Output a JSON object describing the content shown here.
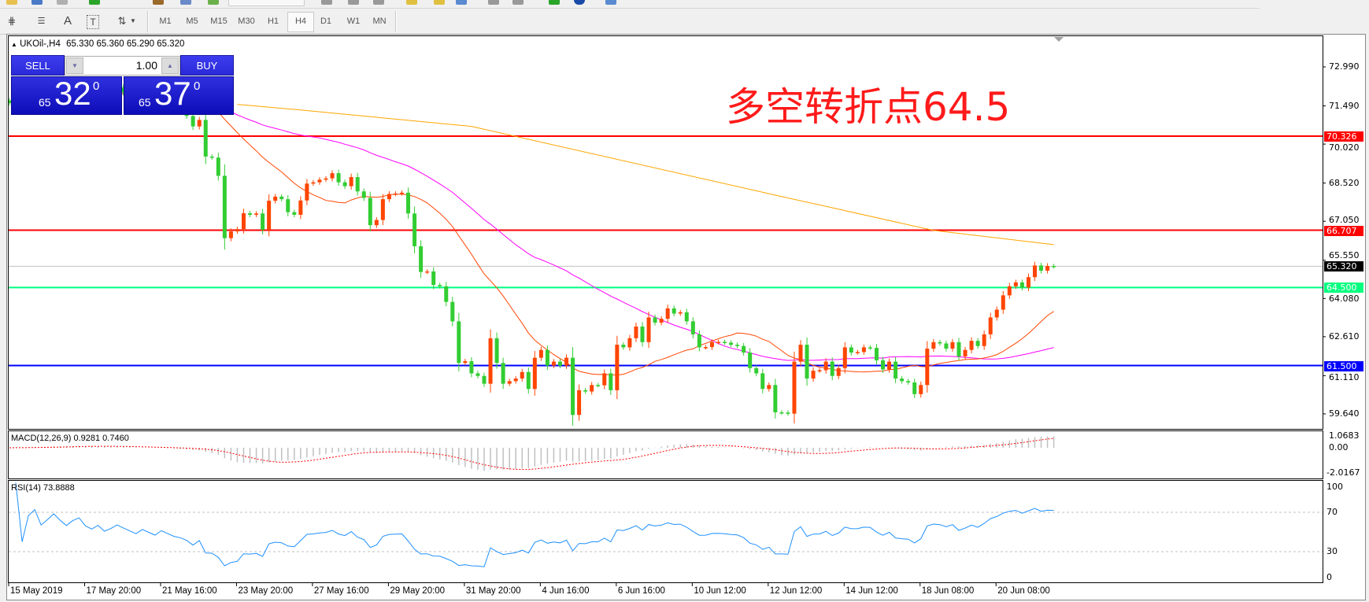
{
  "toolbar": {
    "timeframes": [
      "M1",
      "M5",
      "M15",
      "M30",
      "H1",
      "H4",
      "D1",
      "W1",
      "MN"
    ],
    "active_timeframe": "H4",
    "tools": [
      "elliott-wave-icon",
      "fibonacci-icon",
      "text-icon",
      "text-label-icon",
      "arrows-icon"
    ]
  },
  "chart": {
    "header_symbol": "UKOil-,H4",
    "header_ohlc": "65.330 65.360 65.290 65.320",
    "annotation": "多空转折点64.5"
  },
  "trade_panel": {
    "sell_label": "SELL",
    "buy_label": "BUY",
    "lot": "1.00",
    "sell": {
      "prefix": "65",
      "main": "32",
      "sup": "0"
    },
    "buy": {
      "prefix": "65",
      "main": "37",
      "sup": "0"
    }
  },
  "macd": {
    "label": "MACD(12,26,9) 0.9281 0.7460",
    "axis": [
      "1.0683",
      "0.00",
      "-2.0167"
    ]
  },
  "rsi": {
    "label": "RSI(14) 73.8888",
    "axis": [
      "100",
      "70",
      "30",
      "0"
    ]
  },
  "chart_data": {
    "type": "candlestick",
    "symbol": "UKOil-",
    "timeframe": "H4",
    "price_ticks": [
      "72.990",
      "71.490",
      "70.020",
      "68.520",
      "67.050",
      "65.550",
      "64.080",
      "62.610",
      "61.110",
      "59.640"
    ],
    "ylim": [
      59.2,
      74.1
    ],
    "time_labels": [
      "15 May 2019",
      "17 May 20:00",
      "21 May 16:00",
      "23 May 20:00",
      "27 May 16:00",
      "29 May 20:00",
      "31 May 20:00",
      "4 Jun 16:00",
      "6 Jun 16:00",
      "10 Jun 12:00",
      "12 Jun 12:00",
      "14 Jun 12:00",
      "18 Jun 08:00",
      "20 Jun 08:00"
    ],
    "bars_per_time_label": 12,
    "closes": [
      71.6,
      71.8,
      71.5,
      71.9,
      72.1,
      71.8,
      72.0,
      72.3,
      72.1,
      71.9,
      72.2,
      72.4,
      72.0,
      71.8,
      72.1,
      71.7,
      71.9,
      72.2,
      72.0,
      71.8,
      71.6,
      71.9,
      71.7,
      71.5,
      71.8,
      71.6,
      71.4,
      71.3,
      71.1,
      70.7,
      70.95,
      69.54,
      69.5,
      68.8,
      66.4,
      66.66,
      66.75,
      67.36,
      67.3,
      67.35,
      66.72,
      67.84,
      68.0,
      67.9,
      67.4,
      67.3,
      67.85,
      68.5,
      68.55,
      68.65,
      68.7,
      68.9,
      68.55,
      68.4,
      68.75,
      68.2,
      67.95,
      66.9,
      67.1,
      67.9,
      68.1,
      68.12,
      68.15,
      67.35,
      66.09,
      65.1,
      65.12,
      64.6,
      64.55,
      63.95,
      63.2,
      61.6,
      61.67,
      61.2,
      61.1,
      60.8,
      62.55,
      61.6,
      60.8,
      60.9,
      61.0,
      61.25,
      60.6,
      61.8,
      62.1,
      61.5,
      61.65,
      61.5,
      61.8,
      59.6,
      60.55,
      60.5,
      60.75,
      60.74,
      61.2,
      60.55,
      62.3,
      62.2,
      62.55,
      63.0,
      62.4,
      63.35,
      63.15,
      63.3,
      63.7,
      63.5,
      63.55,
      63.2,
      62.7,
      62.2,
      62.21,
      62.4,
      62.41,
      62.38,
      62.3,
      62.25,
      62.0,
      61.4,
      61.2,
      60.6,
      60.75,
      59.7,
      59.69,
      59.65,
      61.65,
      62.3,
      61.0,
      61.3,
      61.32,
      61.65,
      61.1,
      61.4,
      62.2,
      62.0,
      62.02,
      62.2,
      62.18,
      61.7,
      61.35,
      61.65,
      61.0,
      60.9,
      60.85,
      60.4,
      60.75,
      62.15,
      62.4,
      62.35,
      62.15,
      62.4,
      61.85,
      62.1,
      62.45,
      62.25,
      62.7,
      63.35,
      63.65,
      64.2,
      64.55,
      64.7,
      64.5,
      64.9,
      65.35,
      65.15,
      65.33,
      65.32
    ],
    "last_price": 65.32,
    "levels": [
      {
        "price": 70.326,
        "label": "70.326",
        "color": "#ff0000"
      },
      {
        "price": 66.707,
        "label": "66.707",
        "color": "#ff0000"
      },
      {
        "price": 64.5,
        "label": "64.500",
        "color": "#00ff7f"
      },
      {
        "price": 61.5,
        "label": "61.500",
        "color": "#0000ff"
      }
    ],
    "bid_line": {
      "price": 65.32,
      "label": "65.320",
      "color": "#c0c0c0"
    },
    "slow_ma_keypoints": [
      [
        36,
        71.55
      ],
      [
        46,
        71.33
      ],
      [
        73,
        70.7
      ],
      [
        122,
        68.0
      ],
      [
        130,
        67.57
      ],
      [
        146,
        66.7
      ],
      [
        165,
        66.15
      ]
    ],
    "colors": {
      "up": "#ff4500",
      "down": "#32cd32",
      "ma_fast": "#ff4500",
      "ma_mid": "#ff00ff",
      "ma_slow": "#ffa500",
      "macd_hist": "#c0c0c0",
      "macd_signal": "#ff0000",
      "rsi": "#1e90ff"
    },
    "macd_ylim": [
      -2.5,
      1.35
    ],
    "rsi_ylim": [
      0,
      100
    ],
    "rsi_levels": [
      70,
      30
    ]
  }
}
